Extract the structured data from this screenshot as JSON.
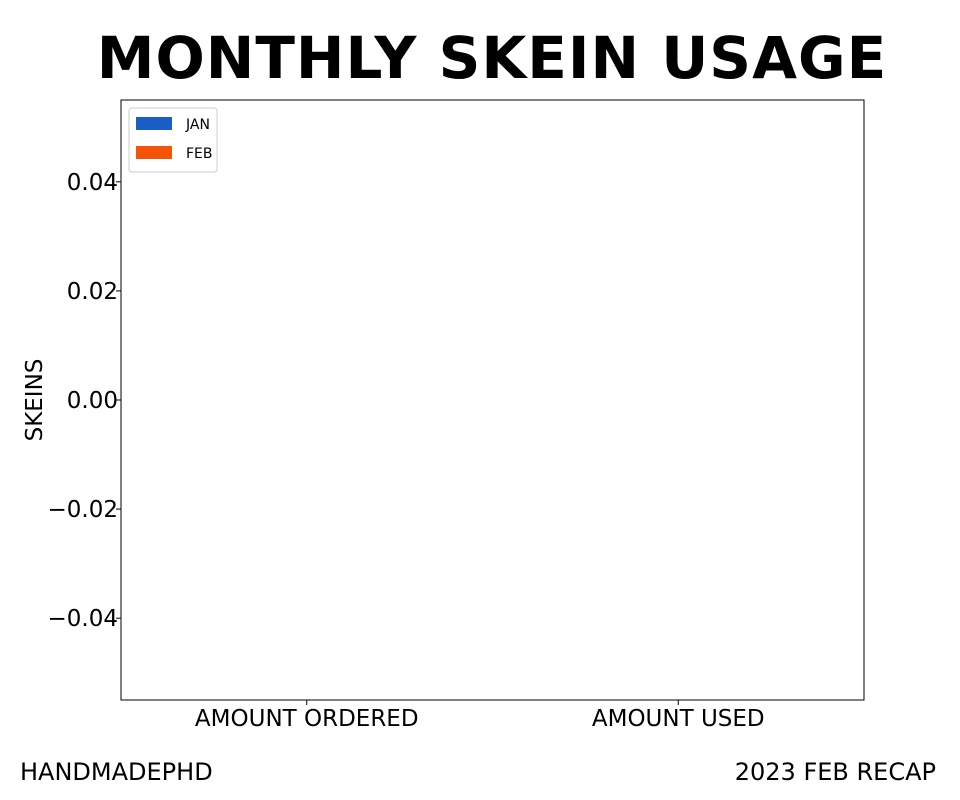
{
  "footer": {
    "left": "HANDMADEPHD",
    "right": "2023 FEB RECAP"
  },
  "chart_data": {
    "type": "bar",
    "title": "MONTHLY SKEIN USAGE",
    "xlabel": "",
    "ylabel": "SKEINS",
    "categories": [
      "AMOUNT ORDERED",
      "AMOUNT USED"
    ],
    "series": [
      {
        "name": "JAN",
        "color": "#1a5fc8",
        "values": [
          0,
          0
        ]
      },
      {
        "name": "FEB",
        "color": "#f55308",
        "values": [
          0,
          0
        ]
      }
    ],
    "ylim": [
      -0.055,
      0.055
    ],
    "yticks": [
      -0.04,
      -0.02,
      0.0,
      0.02,
      0.04
    ],
    "ytick_labels": [
      "−0.04",
      "−0.02",
      "0.00",
      "0.02",
      "0.04"
    ],
    "grid": false,
    "legend_position": "top-left"
  }
}
